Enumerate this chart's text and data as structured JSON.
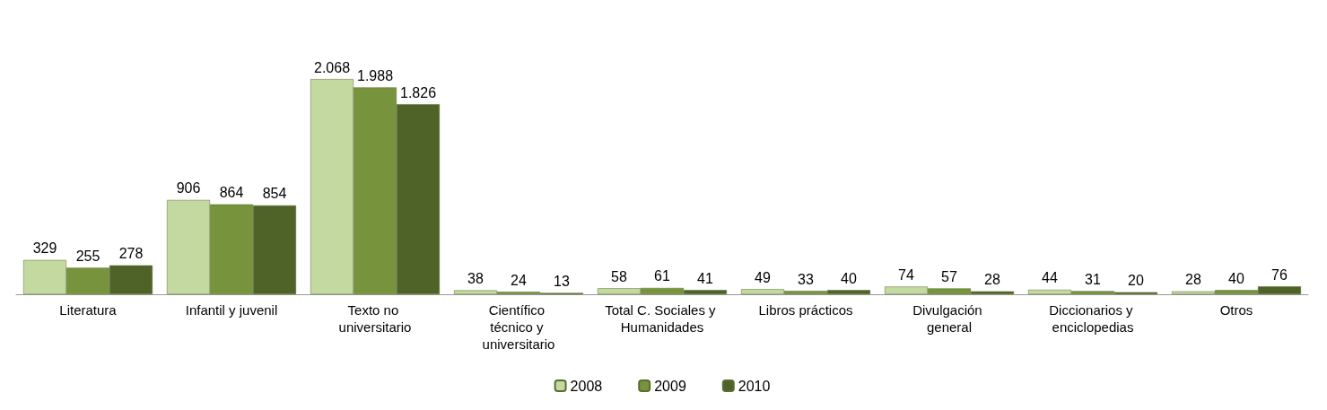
{
  "chart_data": {
    "type": "bar",
    "categories": [
      "Literatura",
      "Infantil y juvenil",
      "Texto no universitario",
      "Científico técnico y universitario",
      "Total C. Sociales y Humanidades",
      "Libros prácticos",
      "Divulgación general",
      "Diccionarios y enciclopedias",
      "Otros"
    ],
    "series": [
      {
        "name": "2008",
        "color": "#c4d9a0",
        "values": [
          329,
          906,
          2068,
          38,
          58,
          49,
          74,
          44,
          28
        ],
        "value_labels": [
          "329",
          "906",
          "2.068",
          "38",
          "58",
          "49",
          "74",
          "44",
          "28"
        ]
      },
      {
        "name": "2009",
        "color": "#77933c",
        "values": [
          255,
          864,
          1988,
          24,
          61,
          33,
          57,
          31,
          40
        ],
        "value_labels": [
          "255",
          "864",
          "1.988",
          "24",
          "61",
          "33",
          "57",
          "31",
          "40"
        ]
      },
      {
        "name": "2010",
        "color": "#4f6228",
        "values": [
          278,
          854,
          1826,
          13,
          41,
          40,
          28,
          20,
          76
        ],
        "value_labels": [
          "278",
          "854",
          "1.826",
          "13",
          "41",
          "40",
          "28",
          "20",
          "76"
        ]
      }
    ],
    "legend": "bottom",
    "grid": false
  }
}
